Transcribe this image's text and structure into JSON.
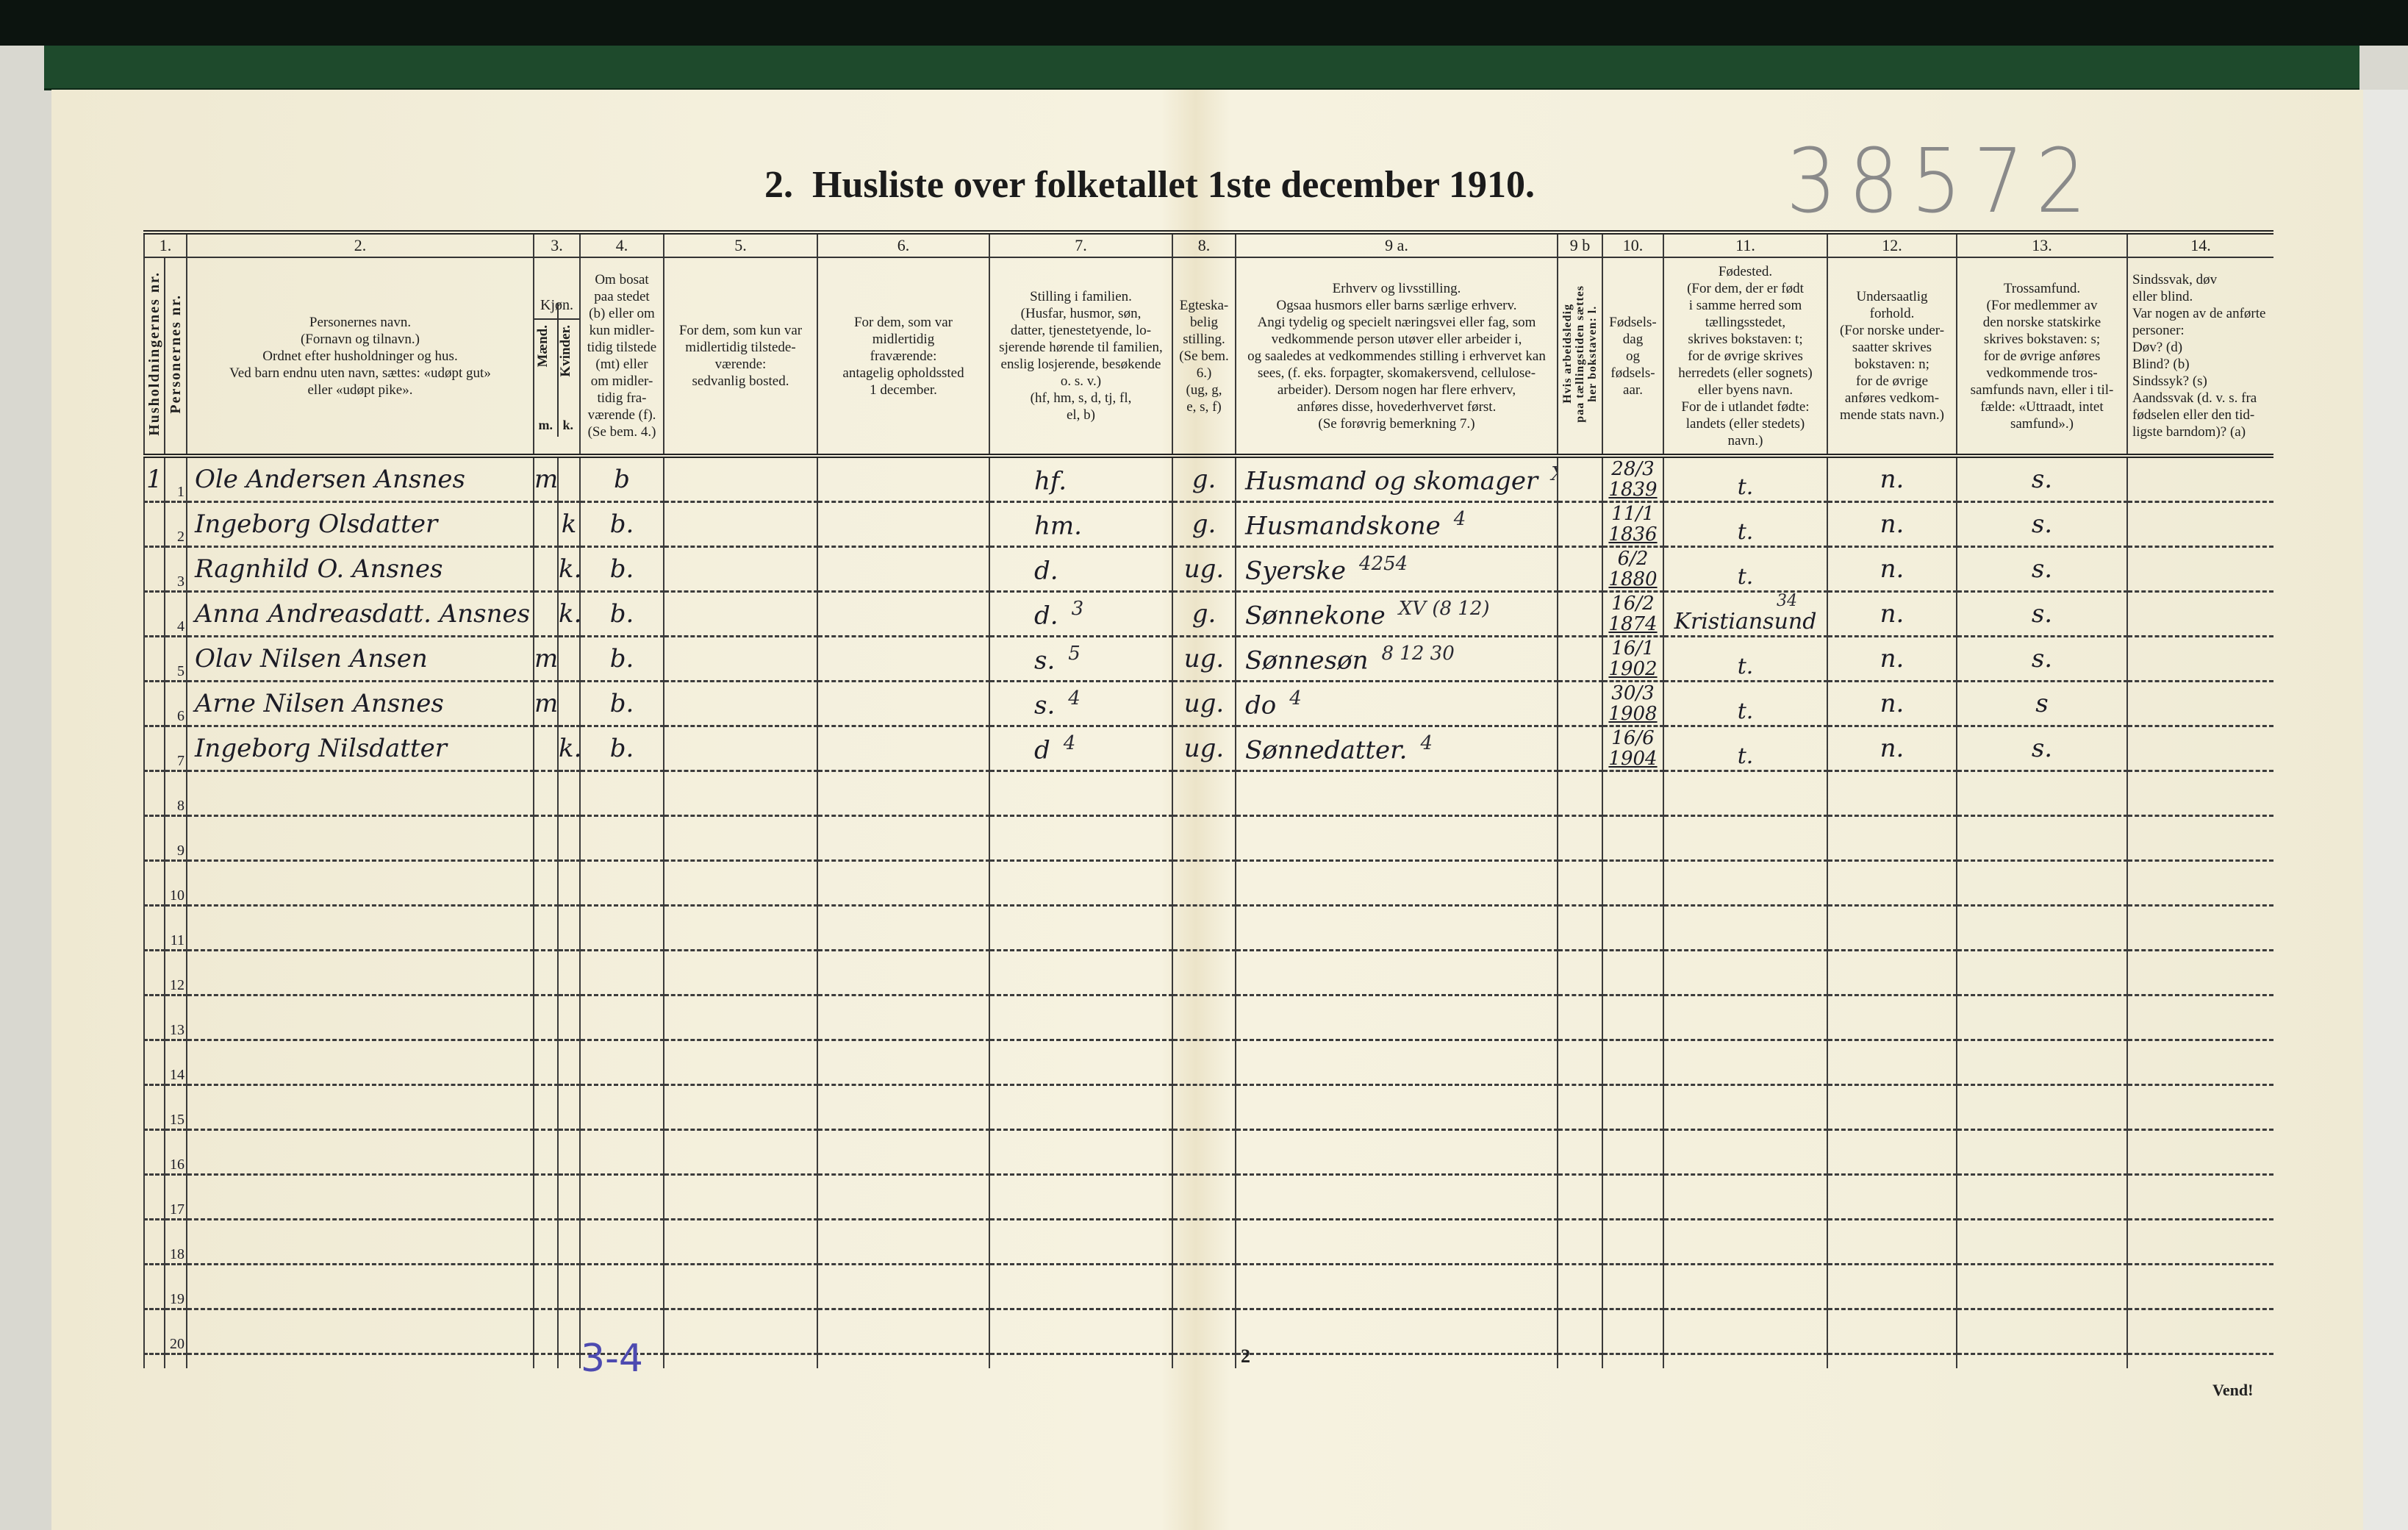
{
  "header": {
    "title": "2.  Husliste over folketallet 1ste december 1910.",
    "archive_number": "38572"
  },
  "column_numbers": [
    "1.",
    "2.",
    "3.",
    "4.",
    "5.",
    "6.",
    "7.",
    "8.",
    "9 a.",
    "9 b",
    "10.",
    "11.",
    "12.",
    "13.",
    "14."
  ],
  "column_headers": {
    "household_nr": "Husholdningernes nr.",
    "person_nr": "Personernes nr.",
    "name": "Personernes navn.\n(Fornavn og tilnavn.)\nOrdnet efter husholdninger og hus.\nVed barn endnu uten navn, sættes: «udøpt gut»\neller «udøpt pike».",
    "sex": "Kjøn.",
    "sex_male": "Mænd.",
    "sex_female": "Kvinder.",
    "sex_male_code": "m.",
    "sex_female_code": "k.",
    "residence": "Om bosat\npaa stedet\n(b) eller om\nkun midler-\ntidig tilstede\n(mt) eller\nom midler-\ntidig fra-\nværende (f).\n(Se bem. 4.)",
    "temp_present": "For dem, som kun var\nmidlertidig tilstede-\nværende:\nsedvanlig bosted.",
    "temp_absent": "For dem, som var\nmidlertidig\nfraværende:\nantagelig opholdssted\n1 december.",
    "family_position": "Stilling i familien.\n(Husfar, husmor, søn,\ndatter, tjenestetyende, lo-\nsjerende hørende til familien,\nenslig losjerende, besøkende\no. s. v.)\n(hf, hm, s, d, tj, fl,\nel, b)",
    "marital": "Egteska-\nbelig\nstilling.\n(Se bem. 6.)\n(ug, g,\ne, s, f)",
    "occupation": "Erhverv og livsstilling.\nOgsaa husmors eller barns særlige erhverv.\nAngi tydelig og specielt næringsvei eller fag, som\nvedkommende person utøver eller arbeider i,\nog saaledes at vedkommendes stilling i erhvervet kan\nsees, (f. eks. forpagter, skomakersvend, cellulose-\narbeider). Dersom nogen har flere erhverv,\nanføres disse, hovederhvervet først.\n(Se forøvrig bemerkning 7.)",
    "unemployed": "Hvis arbeidsledig\npaa tællingstiden sættes\nher bokstaven: l.",
    "birth_date": "Fødsels-\ndag\nog\nfødsels-\naar.",
    "birthplace": "Fødested.\n(For dem, der er født\ni samme herred som\ntællingsstedet,\nskrives bokstaven: t;\nfor de øvrige skrives\nherredets (eller sognets)\neller byens navn.\nFor de i utlandet fødte:\nlandets (eller stedets)\nnavn.)",
    "citizenship": "Undersaatlig\nforhold.\n(For norske under-\nsaatter skrives\nbokstaven: n;\nfor de øvrige\nanføres vedkom-\nmende stats navn.)",
    "religion": "Trossamfund.\n(For medlemmer av\nden norske statskirke\nskrives bokstaven: s;\nfor de øvrige anføres\nvedkommende tros-\nsamfunds navn, eller i til-\nfælde: «Uttraadt, intet\nsamfund».)",
    "disability": "Sindssvak, døv\neller blind.\nVar nogen av de anførte\npersoner:\nDøv?  (d)\nBlind?  (b)\nSindssyk?  (s)\nAandssvak (d. v. s. fra\nfødselen eller den tid-\nligste barndom)?  (a)"
  },
  "rows": [
    {
      "nr": "1",
      "household": "1",
      "name": "Ole Andersen Ansnes",
      "male": "m.",
      "female": "",
      "residence": "b",
      "family_position": "hf.",
      "family_note": "",
      "marital": "g.",
      "occupation": "Husmand og skomager",
      "occupation_note": "XV",
      "birth_day": "28/3",
      "birth_year": "1839",
      "birthplace": "t.",
      "birthplace_note": "",
      "citizenship": "n.",
      "religion": "s."
    },
    {
      "nr": "2",
      "household": "",
      "name": "Ingeborg Olsdatter",
      "male": "",
      "female": "k",
      "residence": "b.",
      "family_position": "hm.",
      "family_note": "",
      "marital": "g.",
      "occupation": "Husmandskone",
      "occupation_note": "4",
      "birth_day": "11/1",
      "birth_year": "1836",
      "birthplace": "t.",
      "birthplace_note": "",
      "citizenship": "n.",
      "religion": "s."
    },
    {
      "nr": "3",
      "household": "",
      "name": "Ragnhild O. Ansnes",
      "male": "",
      "female": "k.",
      "residence": "b.",
      "family_position": "d.",
      "family_note": "",
      "marital": "ug.",
      "occupation": "Syerske",
      "occupation_note": "4254",
      "birth_day": "6/2",
      "birth_year": "1880",
      "birthplace": "t.",
      "birthplace_note": "",
      "citizenship": "n.",
      "religion": "s."
    },
    {
      "nr": "4",
      "household": "",
      "name": "Anna Andreasdatt. Ansnes",
      "male": "",
      "female": "k.",
      "residence": "b.",
      "family_position": "d.",
      "family_note": "3",
      "marital": "g.",
      "occupation": "Sønnekone",
      "occupation_note": "XV (8 12)",
      "birth_day": "16/2",
      "birth_year": "1874",
      "birthplace": "Kristiansund",
      "birthplace_note": "34",
      "citizenship": "n.",
      "religion": "s."
    },
    {
      "nr": "5",
      "household": "",
      "name": "Olav Nilsen Ansen",
      "male": "m.",
      "female": "",
      "residence": "b.",
      "family_position": "s.",
      "family_note": "5",
      "marital": "ug.",
      "occupation": "Sønnesøn",
      "occupation_note": "8 12 30",
      "birth_day": "16/1",
      "birth_year": "1902",
      "birthplace": "t.",
      "birthplace_note": "",
      "citizenship": "n.",
      "religion": "s."
    },
    {
      "nr": "6",
      "household": "",
      "name": "Arne Nilsen Ansnes",
      "male": "m.",
      "female": "",
      "residence": "b.",
      "family_position": "s.",
      "family_note": "4",
      "marital": "ug.",
      "occupation": "do",
      "occupation_note": "4",
      "birth_day": "30/3",
      "birth_year": "1908",
      "birthplace": "t.",
      "birthplace_note": "",
      "citizenship": "n.",
      "religion": "s"
    },
    {
      "nr": "7",
      "household": "",
      "name": "Ingeborg Nilsdatter",
      "male": "",
      "female": "k.",
      "residence": "b.",
      "family_position": "d",
      "family_note": "4",
      "marital": "ug.",
      "occupation": "Sønnedatter.",
      "occupation_note": "4",
      "birth_day": "16/6",
      "birth_year": "1904",
      "birthplace": "t.",
      "birthplace_note": "",
      "citizenship": "n.",
      "religion": "s."
    },
    {
      "nr": "8"
    },
    {
      "nr": "9"
    },
    {
      "nr": "10"
    },
    {
      "nr": "11"
    },
    {
      "nr": "12"
    },
    {
      "nr": "13"
    },
    {
      "nr": "14"
    },
    {
      "nr": "15"
    },
    {
      "nr": "16"
    },
    {
      "nr": "17"
    },
    {
      "nr": "18"
    },
    {
      "nr": "19"
    },
    {
      "nr": "20"
    }
  ],
  "footer": {
    "handwritten_note": "3-4",
    "page_number": "2",
    "turn_label": "Vend!"
  },
  "colors": {
    "paper": "#f3efdb",
    "ink": "#1c1c26",
    "blue_pencil": "#4d4ab0",
    "grey_pencil": "#8a8a8a",
    "binding_green": "#1e4a2c"
  }
}
